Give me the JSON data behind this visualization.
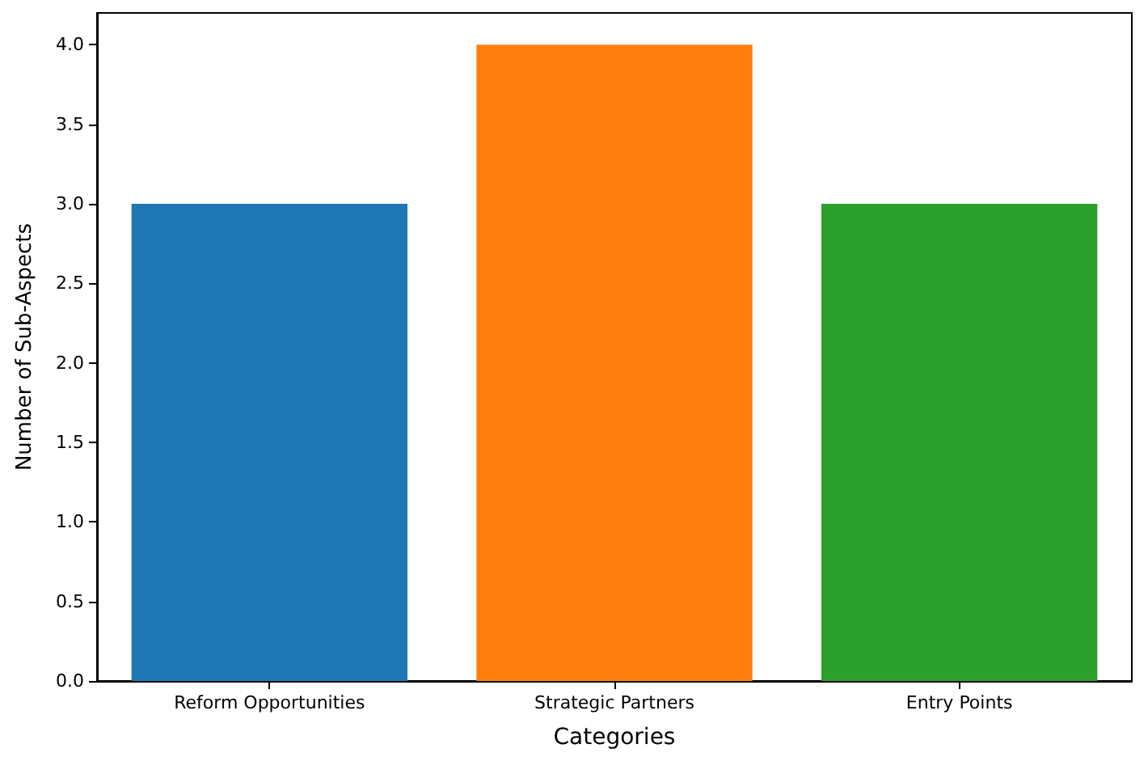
{
  "chart_data": {
    "type": "bar",
    "xlabel": "Categories",
    "ylabel": "Number of Sub-Aspects",
    "categories": [
      "Reform Opportunities",
      "Strategic Partners",
      "Entry Points"
    ],
    "values": [
      3,
      4,
      3
    ],
    "colors": [
      "#1f77b4",
      "#ff7f0e",
      "#2ca02c"
    ],
    "ylim": [
      0,
      4.2
    ],
    "yticks": [
      {
        "value": 0,
        "label": "0.0"
      },
      {
        "value": 0.5,
        "label": "0.5"
      },
      {
        "value": 1,
        "label": "1.0"
      },
      {
        "value": 1.5,
        "label": "1.5"
      },
      {
        "value": 2,
        "label": "2.0"
      },
      {
        "value": 2.5,
        "label": "2.5"
      },
      {
        "value": 3,
        "label": "3.0"
      },
      {
        "value": 3.5,
        "label": "3.5"
      },
      {
        "value": 4,
        "label": "4.0"
      }
    ]
  }
}
